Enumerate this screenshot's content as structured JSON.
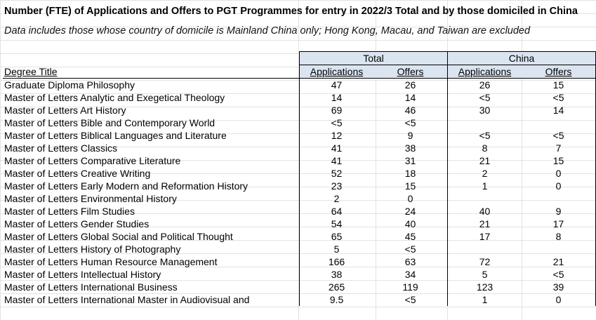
{
  "title": "Number (FTE) of Applications and Offers to PGT Programmes for entry in 2022/3 Total and by those domiciled in China",
  "subtitle": "Data includes those whose country of domicile is Mainland China only; Hong Kong, Macau, and Taiwan are excluded",
  "groups": {
    "total": "Total",
    "china": "China"
  },
  "headers": {
    "degree": "Degree Title",
    "applications": "Applications",
    "offers": "Offers",
    "applications_china": "Applications",
    "offers_china": "Offers"
  },
  "rows": [
    [
      "Graduate Diploma Philosophy",
      "47",
      "26",
      "26",
      "15"
    ],
    [
      "Master of Letters  Analytic and Exegetical Theology",
      "14",
      "14",
      "<5",
      "<5"
    ],
    [
      "Master of Letters Art History",
      "69",
      "46",
      "30",
      "14"
    ],
    [
      "Master of Letters Bible and Contemporary World",
      "<5",
      "<5",
      "",
      ""
    ],
    [
      "Master of Letters Biblical Languages and Literature",
      "12",
      "9",
      "<5",
      "<5"
    ],
    [
      "Master of Letters Classics",
      "41",
      "38",
      "8",
      "7"
    ],
    [
      "Master of Letters Comparative Literature",
      "41",
      "31",
      "21",
      "15"
    ],
    [
      "Master of Letters Creative Writing",
      "52",
      "18",
      "2",
      "0"
    ],
    [
      "Master of Letters Early Modern and Reformation History",
      "23",
      "15",
      "1",
      "0"
    ],
    [
      "Master of Letters Environmental History",
      "2",
      "0",
      "",
      ""
    ],
    [
      "Master of Letters Film Studies",
      "64",
      "24",
      "40",
      "9"
    ],
    [
      "Master of Letters Gender Studies",
      "54",
      "40",
      "21",
      "17"
    ],
    [
      "Master of Letters Global Social and Political Thought",
      "65",
      "45",
      "17",
      "8"
    ],
    [
      "Master of Letters History of Photography",
      "5",
      "<5",
      "",
      ""
    ],
    [
      "Master of Letters Human Resource Management",
      "166",
      "63",
      "72",
      "21"
    ],
    [
      "Master of Letters Intellectual History",
      "38",
      "34",
      "5",
      "<5"
    ],
    [
      "Master of Letters International Business",
      "265",
      "119",
      "123",
      "39"
    ],
    [
      "Master of Letters International Master in Audiovisual and",
      "9.5",
      "<5",
      "1",
      "0"
    ]
  ]
}
